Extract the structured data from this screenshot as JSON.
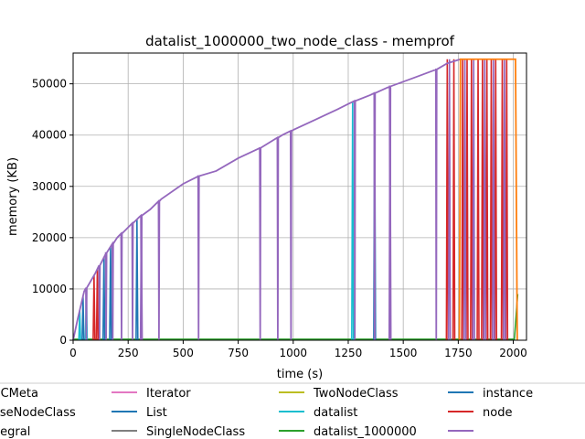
{
  "chart_data": {
    "type": "line",
    "title": "datalist_1000000_two_node_class - memprof",
    "xlabel": "time (s)",
    "ylabel": "memory (KB)",
    "xlim": [
      0,
      2060
    ],
    "ylim": [
      0,
      56000
    ],
    "xticks": [
      0,
      250,
      500,
      750,
      1000,
      1250,
      1500,
      1750,
      2000
    ],
    "yticks": [
      0,
      10000,
      20000,
      30000,
      40000,
      50000
    ],
    "grid": true,
    "legend_position": "bottom",
    "legend": [
      {
        "label": "ABCMeta",
        "color": "#1f77b4"
      },
      {
        "label": "BaseNodeClass",
        "color": "#8c564b"
      },
      {
        "label": "Integral",
        "color": "#9467bd"
      },
      {
        "label": "Iterator",
        "color": "#e377c2"
      },
      {
        "label": "List",
        "color": "#1f77b4"
      },
      {
        "label": "SingleNodeClass",
        "color": "#7f7f7f"
      },
      {
        "label": "TwoNodeClass",
        "color": "#bcbd22"
      },
      {
        "label": "datalist",
        "color": "#17becf"
      },
      {
        "label": "datalist_1000000",
        "color": "#2ca02c"
      },
      {
        "label": "instance",
        "color": "#1f77b4"
      },
      {
        "label": "node",
        "color": "#d62728"
      },
      {
        "label": "",
        "color": "#9467bd"
      },
      {
        "label": "",
        "color": "#ff7f0e"
      }
    ],
    "envelope": [
      [
        0,
        0
      ],
      [
        20,
        4000
      ],
      [
        50,
        9500
      ],
      [
        100,
        13000
      ],
      [
        150,
        17000
      ],
      [
        200,
        20000
      ],
      [
        250,
        22000
      ],
      [
        300,
        24000
      ],
      [
        350,
        25500
      ],
      [
        400,
        27500
      ],
      [
        500,
        30500
      ],
      [
        570,
        32000
      ],
      [
        650,
        33000
      ],
      [
        750,
        35500
      ],
      [
        850,
        37500
      ],
      [
        950,
        40000
      ],
      [
        1000,
        41000
      ],
      [
        1100,
        43000
      ],
      [
        1200,
        45000
      ],
      [
        1270,
        46500
      ],
      [
        1350,
        47800
      ],
      [
        1440,
        49500
      ],
      [
        1550,
        51200
      ],
      [
        1650,
        52800
      ],
      [
        1700,
        54000
      ],
      [
        1760,
        54800
      ]
    ],
    "spikes": [
      {
        "x": 30,
        "color": "#17becf"
      },
      {
        "x": 45,
        "color": "#1f77b4"
      },
      {
        "x": 60,
        "color": "#17becf"
      },
      {
        "x": 95,
        "color": "#d62728"
      },
      {
        "x": 110,
        "color": "#d62728"
      },
      {
        "x": 140,
        "color": "#1f77b4"
      },
      {
        "x": 170,
        "color": "#1f77b4"
      },
      {
        "x": 290,
        "color": "#1f77b4"
      },
      {
        "x": 310,
        "color": "#9467bd"
      },
      {
        "x": 1270,
        "color": "#17becf"
      },
      {
        "x": 1370,
        "color": "#1f77b4"
      },
      {
        "x": 1440,
        "color": "#9467bd"
      }
    ],
    "purple_dips": [
      60,
      120,
      150,
      180,
      220,
      270,
      310,
      390,
      570,
      850,
      930,
      990,
      1280,
      1370,
      1440,
      1650
    ],
    "node_spikes": [
      1700,
      1730,
      1770,
      1790,
      1810,
      1840,
      1860,
      1880,
      1900,
      1920,
      1950,
      1970
    ],
    "top_line": {
      "x_start": 1760,
      "x_end": 2010,
      "y": 54800,
      "color": "#ff7f0e"
    },
    "datalist_1000000_final": {
      "x": 2020,
      "y": 9000
    }
  }
}
